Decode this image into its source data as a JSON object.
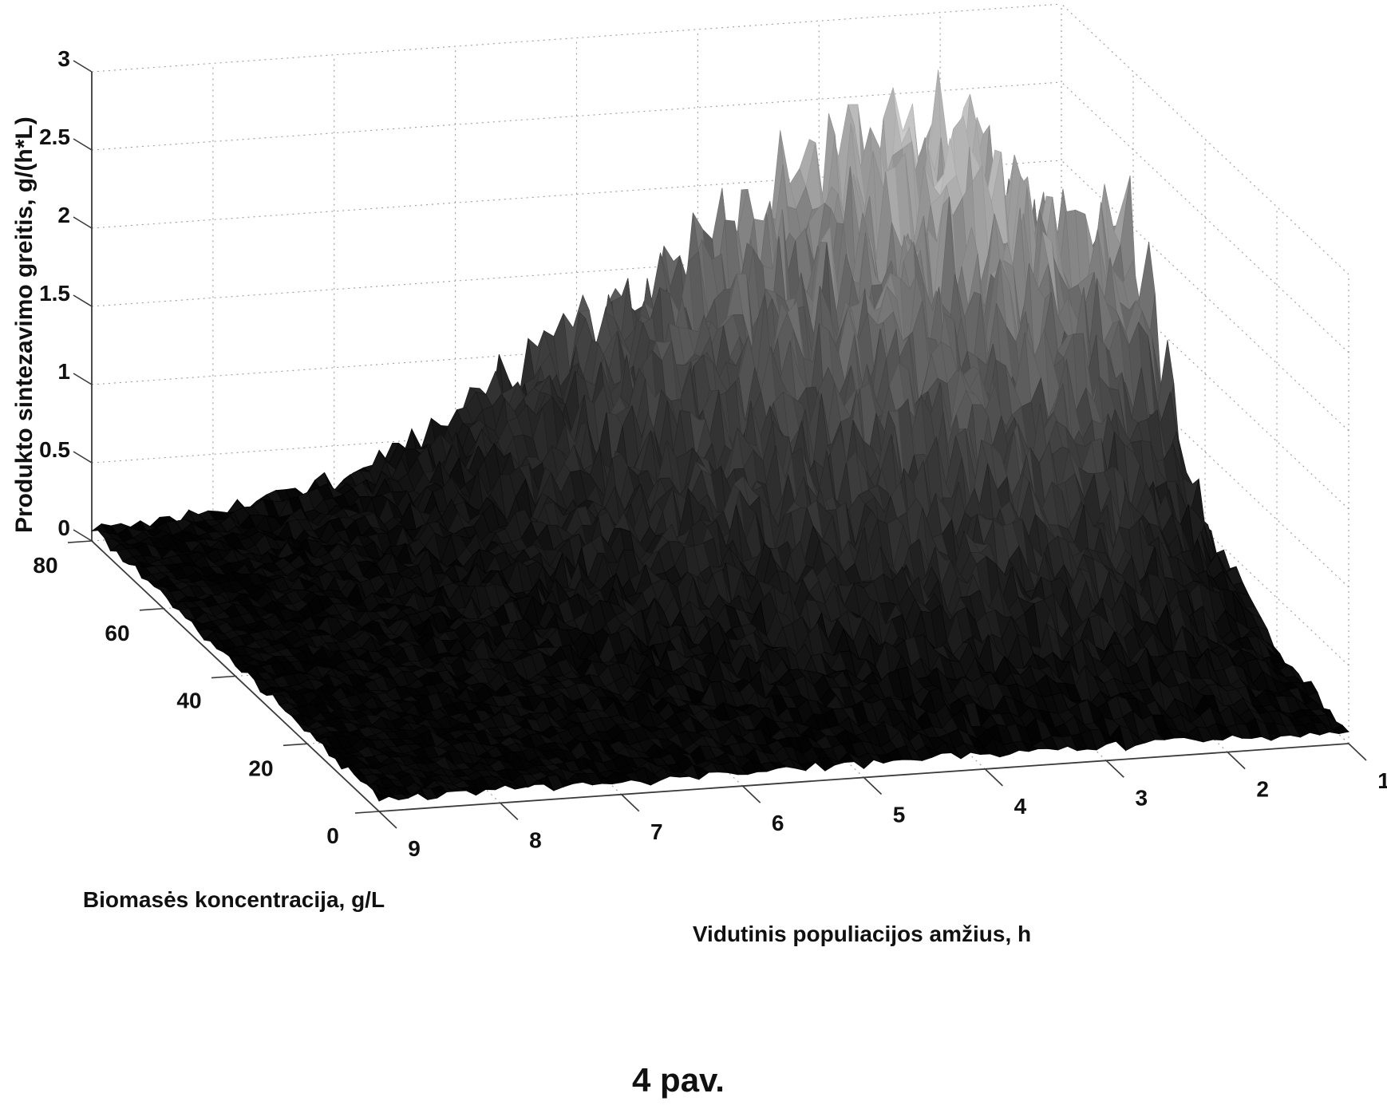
{
  "figure": {
    "caption": "4 pav."
  },
  "colors": {
    "background": "#ffffff",
    "surface_low": "#050505",
    "surface_high": "#c3c3c3",
    "grid_line": "#9b9b9b",
    "axis_line": "#3a3a3a",
    "text": "#111111"
  },
  "chart_data": {
    "type": "surface",
    "title": "4 pav.",
    "legend": "none",
    "x_axis": {
      "label": "Vidutinis populiacijos amžius, h",
      "ticks": [
        9,
        8,
        7,
        6,
        5,
        4,
        3,
        2,
        1
      ],
      "range": [
        1,
        9
      ]
    },
    "y_axis": {
      "label": "Biomasės koncentracija, g/L",
      "ticks": [
        80,
        60,
        40,
        20,
        0
      ],
      "range": [
        0,
        80
      ]
    },
    "z_axis": {
      "label": "Produkto sintezavimo greitis, g/(h*L)",
      "ticks": [
        0,
        0.5,
        1,
        1.5,
        2,
        2.5,
        3
      ],
      "range": [
        0,
        3
      ]
    },
    "surface": {
      "x_values": [
        1,
        2,
        3,
        4,
        5,
        6,
        7,
        8,
        9
      ],
      "y_values": [
        0,
        20,
        40,
        60,
        80
      ],
      "z_grid_row_order": "y ascending (0 to 80)",
      "z_grid": [
        [
          0.05,
          0.06,
          0.06,
          0.06,
          0.06,
          0.05,
          0.05,
          0.05,
          0.05
        ],
        [
          0.15,
          0.55,
          0.6,
          0.5,
          0.35,
          0.25,
          0.15,
          0.08,
          0.05
        ],
        [
          0.5,
          1.1,
          1.15,
          0.95,
          0.7,
          0.45,
          0.25,
          0.1,
          0.05
        ],
        [
          1.95,
          1.8,
          1.55,
          1.25,
          0.95,
          0.55,
          0.3,
          0.12,
          0.05
        ],
        [
          0.4,
          2.3,
          1.95,
          1.5,
          1.1,
          0.6,
          0.27,
          0.1,
          0.05
        ]
      ],
      "peak": {
        "x": 2,
        "y": 80,
        "z": 2.3
      },
      "secondary_peak": {
        "x": 1,
        "y": 60,
        "z": 1.9
      }
    },
    "style": {
      "colormap": "grayscale, dark=low, light=high",
      "grid": "dotted",
      "walls": [
        "rear (y=80)",
        "right (x=1)",
        "floor"
      ]
    }
  }
}
